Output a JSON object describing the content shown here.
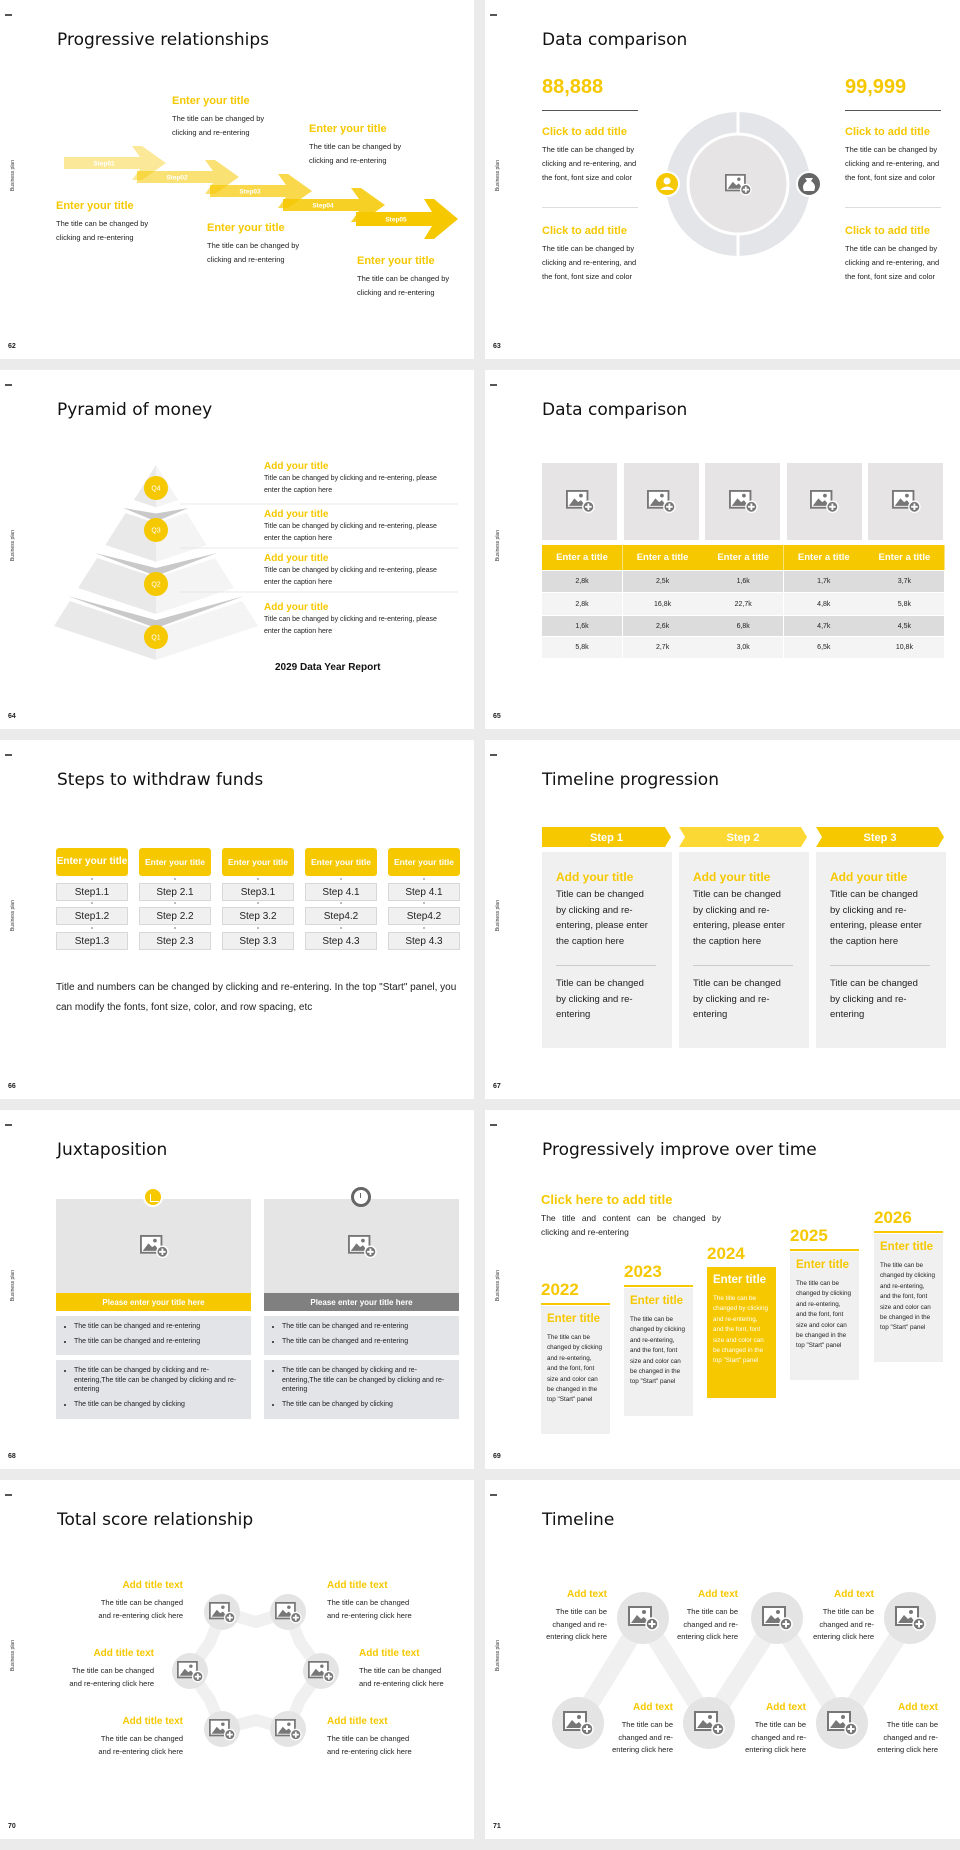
{
  "section_label": "Business plan",
  "colors": {
    "accent": "#f6c800",
    "panel_gray": "#f0f0f0",
    "dark_gray": "#808080"
  },
  "s62": {
    "page": "62",
    "title": "Progressive relationships",
    "steps": [
      "Step01",
      "Step02",
      "Step03",
      "Step04",
      "Step05"
    ],
    "items": [
      {
        "title": "Enter your title",
        "desc": "The title can be changed by\nclicking and re-entering"
      },
      {
        "title": "Enter your title",
        "desc": "The title can be changed by\nclicking and re-entering"
      },
      {
        "title": "Enter your title",
        "desc": "The title can be changed by\nclicking and re-entering"
      },
      {
        "title": "Enter your title",
        "desc": "The title can be changed by\nclicking and re-entering"
      },
      {
        "title": "Enter your title",
        "desc": "The title can be changed by\nclicking and re-entering"
      }
    ]
  },
  "s63": {
    "page": "63",
    "title": "Data comparison",
    "left": {
      "value": "88,888",
      "items": [
        {
          "title": "Click to add title",
          "desc": "The title can be changed by\nclicking and re-entering, and\nthe font, font size and color"
        },
        {
          "title": "Click to add title",
          "desc": "The title can be changed by\nclicking and re-entering, and\nthe font, font size and color"
        }
      ]
    },
    "right": {
      "value": "99,999",
      "items": [
        {
          "title": "Click to add title",
          "desc": "The title can be changed by\nclicking and re-entering, and\nthe font, font size and color"
        },
        {
          "title": "Click to add title",
          "desc": "The title can be changed by\nclicking and re-entering, and\nthe font, font size and color"
        }
      ]
    }
  },
  "s64": {
    "page": "64",
    "title": "Pyramid of money",
    "tiers": [
      "Q4",
      "Q3",
      "Q2",
      "Q1"
    ],
    "items": [
      {
        "title": "Add your title",
        "desc": "Title can be changed by clicking and re-entering, please\nenter the caption here"
      },
      {
        "title": "Add your title",
        "desc": "Title can be changed by clicking and re-entering, please\nenter the caption here"
      },
      {
        "title": "Add your title",
        "desc": "Title can be changed by clicking and re-entering, please\nenter the caption here"
      },
      {
        "title": "Add your title",
        "desc": "Title can be changed by clicking and re-entering, please\nenter the caption here"
      }
    ],
    "report": "2029 Data Year Report"
  },
  "s65": {
    "page": "65",
    "title": "Data comparison",
    "headers": [
      "Enter a title",
      "Enter a title",
      "Enter a title",
      "Enter a title",
      "Enter a title"
    ],
    "rows": [
      [
        "2,8k",
        "2,5k",
        "1,6k",
        "1,7k",
        "3,7k"
      ],
      [
        "2,8k",
        "16,8k",
        "22,7k",
        "4,8k",
        "5,8k"
      ],
      [
        "1,6k",
        "2,6k",
        "6,8k",
        "4,7k",
        "4,5k"
      ],
      [
        "5,8k",
        "2,7k",
        "3,0k",
        "6,5k",
        "10,8k"
      ]
    ]
  },
  "s66": {
    "page": "66",
    "title": "Steps to withdraw funds",
    "headers": [
      "Enter your title",
      "Enter your title",
      "Enter your title",
      "Enter your title",
      "Enter your title"
    ],
    "steps": [
      [
        "Step1.1",
        "Step1.2",
        "Step1.3"
      ],
      [
        "Step 2.1",
        "Step 2.2",
        "Step 2.3"
      ],
      [
        "Step3.1",
        "Step 3.2",
        "Step 3.3"
      ],
      [
        "Step 4.1",
        "Step4.2",
        "Step 4.3"
      ],
      [
        "Step 4.1",
        "Step4.2",
        "Step 4.3"
      ]
    ],
    "note": "Title and numbers can be changed by clicking and re-entering. In the top \"Start\" panel, you can modify the fonts, font size, color, and row spacing, etc"
  },
  "s67": {
    "page": "67",
    "title": "Timeline progression",
    "steps": [
      {
        "label": "Step 1",
        "title": "Add your title",
        "desc": "Title can be changed\nby clicking and re-\nentering, please enter\nthe caption here",
        "desc2": "Title can be changed\nby clicking and re-\nentering"
      },
      {
        "label": "Step 2",
        "title": "Add your title",
        "desc": "Title can be changed\nby clicking and re-\nentering, please enter\nthe caption here",
        "desc2": "Title can be changed\nby clicking and re-\nentering"
      },
      {
        "label": "Step 3",
        "title": "Add your title",
        "desc": "Title can be changed\nby clicking and re-\nentering, please enter\nthe caption here",
        "desc2": "Title can be changed\nby clicking and re-\nentering"
      }
    ]
  },
  "s68": {
    "page": "68",
    "title": "Juxtaposition",
    "cards": [
      {
        "caption": "Please enter your title here",
        "bullets1": [
          "The title can be changed and re-entering",
          "The title can be changed and re-entering"
        ],
        "bullets2": [
          "The title can be changed by clicking and re-entering,The title can be changed by clicking and re-entering",
          "The title can be changed by clicking"
        ]
      },
      {
        "caption": "Please enter your title here",
        "bullets1": [
          "The title can be changed and re-entering",
          "The title can be changed and re-entering"
        ],
        "bullets2": [
          "The title can be changed by clicking and re-entering,The title can be changed by clicking and re-entering",
          "The title can be changed by clicking"
        ]
      }
    ]
  },
  "s69": {
    "page": "69",
    "title": "Progressively improve over time",
    "headline": "Click here to add title",
    "intro": "The title and content can be changed by clicking and re-entering",
    "years": [
      {
        "year": "2022",
        "title": "Enter title",
        "desc": "The title can be changed by clicking and re-entering, and the font, font size and color can be changed in the top \"Start\" panel"
      },
      {
        "year": "2023",
        "title": "Enter title",
        "desc": "The title can be changed by clicking and re-entering, and the font, font size and color can be changed in the top \"Start\" panel"
      },
      {
        "year": "2024",
        "title": "Enter title",
        "desc": "The title can be changed by clicking and re-entering, and the font, font size and color can be changed in the top \"Start\" panel"
      },
      {
        "year": "2025",
        "title": "Enter title",
        "desc": "The title can be changed by clicking and re-entering, and the font, font size and color can be changed in the top \"Start\" panel"
      },
      {
        "year": "2026",
        "title": "Enter title",
        "desc": "The title can be changed by clicking and re-entering, and the font, font size and color can be changed in the top \"Start\" panel"
      }
    ]
  },
  "s70": {
    "page": "70",
    "title": "Total score relationship",
    "items": [
      {
        "title": "Add title text",
        "desc": "The title can be changed\nand re-entering click here"
      },
      {
        "title": "Add title text",
        "desc": "The title can be changed\nand re-entering click here"
      },
      {
        "title": "Add title text",
        "desc": "The title can be changed\nand re-entering click here"
      },
      {
        "title": "Add title text",
        "desc": "The title can be changed\nand re-entering click here"
      },
      {
        "title": "Add title text",
        "desc": "The title can be changed\nand re-entering click here"
      },
      {
        "title": "Add title text",
        "desc": "The title can be changed\nand re-entering click here"
      }
    ]
  },
  "s71": {
    "page": "71",
    "title": "Timeline",
    "items": [
      {
        "title": "Add text",
        "desc": "The title can be\nchanged and re-\nentering click here"
      },
      {
        "title": "Add text",
        "desc": "The title can be\nchanged and re-\nentering click here"
      },
      {
        "title": "Add text",
        "desc": "The title can be\nchanged and re-\nentering click here"
      },
      {
        "title": "Add text",
        "desc": "The title can be\nchanged and re-\nentering click here"
      },
      {
        "title": "Add text",
        "desc": "The title can be\nchanged and re-\nentering click here"
      },
      {
        "title": "Add text",
        "desc": "The title can be\nchanged and re-\nentering click here"
      }
    ]
  }
}
